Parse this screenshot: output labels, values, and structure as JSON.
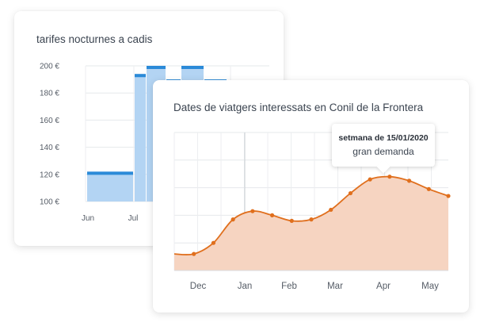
{
  "chart_data": [
    {
      "type": "bar",
      "title": "tarifes nocturnes a cadis",
      "y_ticks": [
        "200 €",
        "180 €",
        "160 €",
        "140 €",
        "120 €",
        "100 €"
      ],
      "y_values": [
        200,
        180,
        160,
        140,
        120,
        100
      ],
      "ylim": [
        100,
        200
      ],
      "x_ticks": [
        "Jun",
        "Jul"
      ],
      "bars": [
        {
          "value": 122,
          "label": "Jun"
        },
        {
          "value": 194
        },
        {
          "value": 200
        },
        {
          "value": 190
        },
        {
          "value": 200
        },
        {
          "value": 190
        }
      ],
      "colors": {
        "fill": "#b3d4f3",
        "cap": "#2b8ad8"
      }
    },
    {
      "type": "area",
      "title": "Dates de viatgers interessats en Conil de la Frontera",
      "x_ticks": [
        "Dec",
        "Jan",
        "Feb",
        "Mar",
        "Apr",
        "May"
      ],
      "points": [
        12,
        12,
        20,
        37,
        43,
        40,
        36,
        37,
        44,
        56,
        66,
        68,
        65,
        59,
        54
      ],
      "ylim": [
        0,
        100
      ],
      "tooltip": {
        "date": "setmana de 15/01/2020",
        "label": "gran demanda"
      },
      "colors": {
        "line": "#e06f1d",
        "fill": "#f6d4c1"
      }
    }
  ]
}
